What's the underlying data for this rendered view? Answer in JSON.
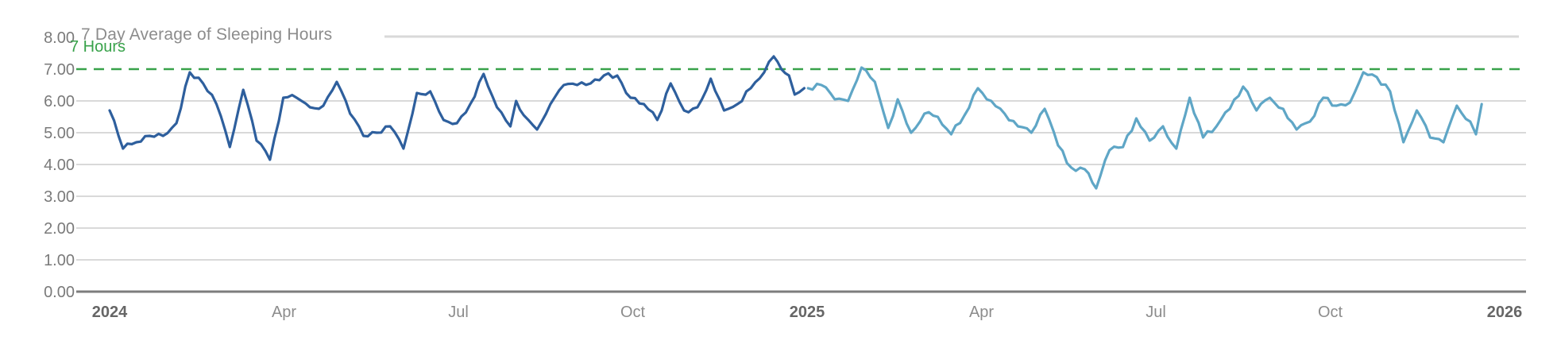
{
  "chart_data": {
    "type": "line",
    "title": "7 Day Average of Sleeping Hours",
    "threshold": {
      "label": "7 Hours",
      "value": 7
    },
    "x_unit": "days since 2024-01-01",
    "x_range_days": [
      0,
      731
    ],
    "y_axis": {
      "min": 0,
      "max": 8,
      "step": 1,
      "tick_labels": [
        "0.00",
        "1.00",
        "2.00",
        "3.00",
        "4.00",
        "5.00",
        "6.00",
        "7.00",
        "8.00"
      ]
    },
    "x_axis": {
      "ticks": [
        {
          "label": "2024",
          "month": 0,
          "bold": true
        },
        {
          "label": "Apr",
          "month": 3,
          "bold": false
        },
        {
          "label": "Jul",
          "month": 6,
          "bold": false
        },
        {
          "label": "Oct",
          "month": 9,
          "bold": false
        },
        {
          "label": "2025",
          "month": 12,
          "bold": true
        },
        {
          "label": "Apr",
          "month": 15,
          "bold": false
        },
        {
          "label": "Jul",
          "month": 18,
          "bold": false
        },
        {
          "label": "Oct",
          "month": 21,
          "bold": false
        },
        {
          "label": "2026",
          "month": 24,
          "bold": true
        }
      ]
    },
    "legend": "none",
    "grid": "horizontal-only",
    "series": [
      {
        "name": "2024",
        "color": "#2e5f9d",
        "points": [
          [
            0,
            5.7
          ],
          [
            7,
            4.5
          ],
          [
            14,
            4.7
          ],
          [
            21,
            4.9
          ],
          [
            28,
            4.9
          ],
          [
            35,
            5.3
          ],
          [
            42,
            6.9
          ],
          [
            49,
            6.55
          ],
          [
            56,
            5.9
          ],
          [
            63,
            4.55
          ],
          [
            70,
            6.35
          ],
          [
            77,
            4.75
          ],
          [
            84,
            4.15
          ],
          [
            91,
            6.1
          ],
          [
            98,
            6.1
          ],
          [
            105,
            5.8
          ],
          [
            112,
            5.85
          ],
          [
            119,
            6.6
          ],
          [
            126,
            5.6
          ],
          [
            133,
            4.9
          ],
          [
            140,
            5.0
          ],
          [
            147,
            5.2
          ],
          [
            154,
            4.5
          ],
          [
            161,
            6.25
          ],
          [
            168,
            6.3
          ],
          [
            175,
            5.4
          ],
          [
            182,
            5.3
          ],
          [
            189,
            5.9
          ],
          [
            196,
            6.85
          ],
          [
            203,
            5.8
          ],
          [
            210,
            5.2
          ],
          [
            213,
            6.0
          ],
          [
            217,
            5.55
          ],
          [
            224,
            5.1
          ],
          [
            231,
            5.9
          ],
          [
            238,
            6.5
          ],
          [
            245,
            6.5
          ],
          [
            252,
            6.55
          ],
          [
            259,
            6.8
          ],
          [
            266,
            6.8
          ],
          [
            273,
            6.1
          ],
          [
            280,
            5.9
          ],
          [
            287,
            5.4
          ],
          [
            294,
            6.55
          ],
          [
            301,
            5.7
          ],
          [
            308,
            5.8
          ],
          [
            315,
            6.7
          ],
          [
            322,
            5.7
          ],
          [
            329,
            5.9
          ],
          [
            336,
            6.4
          ],
          [
            343,
            6.9
          ],
          [
            348,
            7.4
          ],
          [
            352,
            7.0
          ],
          [
            356,
            6.8
          ],
          [
            359,
            6.2
          ],
          [
            364,
            6.4
          ]
        ]
      },
      {
        "name": "2025",
        "color": "#5fa6c6",
        "points": [
          [
            366,
            6.4
          ],
          [
            373,
            6.5
          ],
          [
            380,
            6.05
          ],
          [
            387,
            6.0
          ],
          [
            394,
            7.05
          ],
          [
            401,
            6.6
          ],
          [
            408,
            5.15
          ],
          [
            413,
            6.05
          ],
          [
            420,
            5.0
          ],
          [
            427,
            5.6
          ],
          [
            434,
            5.5
          ],
          [
            441,
            4.95
          ],
          [
            448,
            5.55
          ],
          [
            455,
            6.4
          ],
          [
            462,
            6.0
          ],
          [
            469,
            5.6
          ],
          [
            476,
            5.2
          ],
          [
            483,
            5.0
          ],
          [
            490,
            5.75
          ],
          [
            497,
            4.6
          ],
          [
            504,
            3.9
          ],
          [
            511,
            3.85
          ],
          [
            517,
            3.25
          ],
          [
            524,
            4.45
          ],
          [
            531,
            4.55
          ],
          [
            538,
            5.45
          ],
          [
            545,
            4.75
          ],
          [
            552,
            5.2
          ],
          [
            559,
            4.5
          ],
          [
            566,
            6.1
          ],
          [
            573,
            4.85
          ],
          [
            580,
            5.2
          ],
          [
            587,
            5.75
          ],
          [
            594,
            6.45
          ],
          [
            601,
            5.7
          ],
          [
            608,
            6.1
          ],
          [
            615,
            5.75
          ],
          [
            622,
            5.1
          ],
          [
            629,
            5.35
          ],
          [
            636,
            6.1
          ],
          [
            643,
            5.85
          ],
          [
            650,
            5.95
          ],
          [
            657,
            6.9
          ],
          [
            664,
            6.75
          ],
          [
            671,
            6.3
          ],
          [
            678,
            4.7
          ],
          [
            685,
            5.7
          ],
          [
            692,
            4.85
          ],
          [
            699,
            4.7
          ],
          [
            706,
            5.85
          ],
          [
            713,
            5.35
          ],
          [
            716,
            4.95
          ],
          [
            719,
            5.9
          ]
        ]
      }
    ],
    "colors": {
      "threshold_line": "#38a24a",
      "threshold_text": "#38a24a",
      "grid_line": "#d9d9d9",
      "axis_baseline": "#7d7d7d",
      "title_text": "#8c8c8c",
      "y_tick_text": "#7a7a7a",
      "x_tick_text": "#8c8c8c",
      "x_tick_year_text": "#666666",
      "title_rule": "#d9d9d9"
    }
  }
}
